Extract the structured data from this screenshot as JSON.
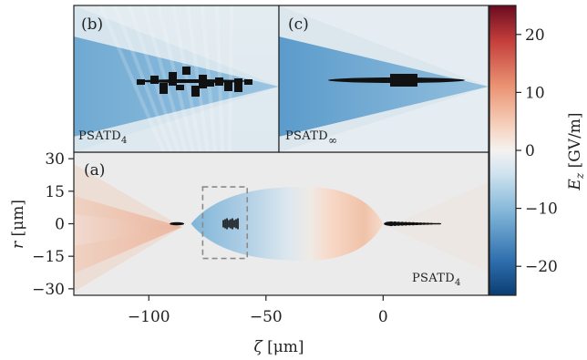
{
  "chart_data": {
    "type": "heatmap",
    "colormap": "RdBu_r",
    "main_panel": {
      "label": "(a)",
      "scheme_label": "PSATD",
      "scheme_subscript": "4",
      "xlabel_symbol": "ζ",
      "xlabel_unit": "[μm]",
      "ylabel_symbol": "r",
      "ylabel_unit": "[μm]",
      "xlim": [
        -132,
        45
      ],
      "ylim": [
        -33,
        33
      ],
      "xticks": [
        -100,
        -50,
        0
      ],
      "xtick_labels": [
        "−100",
        "−50",
        "0"
      ],
      "yticks": [
        30,
        15,
        0,
        -15,
        -30
      ],
      "ytick_labels": [
        "30",
        "15",
        "0",
        "−15",
        "−30"
      ],
      "zoom_box": {
        "x": [
          -77,
          -58
        ],
        "y": [
          -16,
          17
        ]
      },
      "bubble": {
        "x_start": -82,
        "x_end": 0,
        "r_max": 17,
        "peak_field": 20
      },
      "driver_bunch_center_x": 5,
      "witness_bunch_center_x": -65,
      "cherenkov_source_x": -88
    },
    "inset_panels": [
      {
        "label": "(b)",
        "scheme_label": "PSATD",
        "scheme_subscript": "4"
      },
      {
        "label": "(c)",
        "scheme_label": "PSATD",
        "scheme_subscript": "∞"
      }
    ],
    "colorbar": {
      "label_symbol": "E",
      "label_subscript": "z",
      "label_unit": "[GV/m]",
      "range": [
        -25,
        25
      ],
      "ticks": [
        20,
        10,
        0,
        -10,
        -20
      ],
      "tick_labels": [
        "20",
        "10",
        "0",
        "−10",
        "−20"
      ]
    }
  }
}
